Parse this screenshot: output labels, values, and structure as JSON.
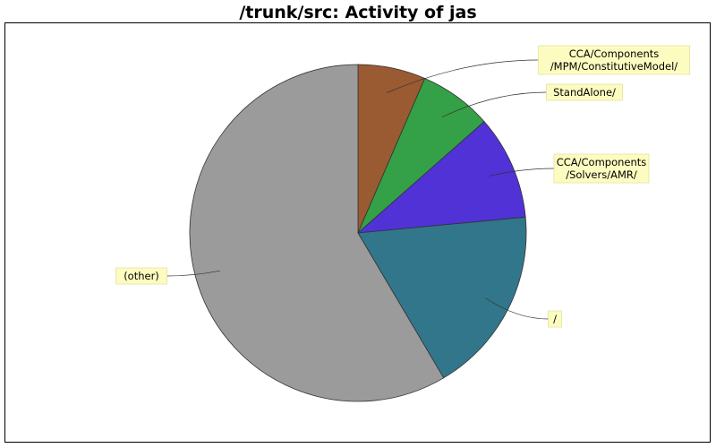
{
  "chart_data": {
    "type": "pie",
    "title": "/trunk/src: Activity of jas",
    "slices": [
      {
        "label": "CCA/Components\n/MPM/ConstitutiveModel/",
        "value": 6.5,
        "color": "#9a5a32"
      },
      {
        "label": "StandAlone/",
        "value": 7.0,
        "color": "#34a047"
      },
      {
        "label": "CCA/Components\n/Solvers/AMR/",
        "value": 10.0,
        "color": "#5032d6"
      },
      {
        "label": "/",
        "value": 18.0,
        "color": "#32768c"
      },
      {
        "label": "(other)",
        "value": 58.5,
        "color": "#9b9b9b"
      }
    ]
  }
}
